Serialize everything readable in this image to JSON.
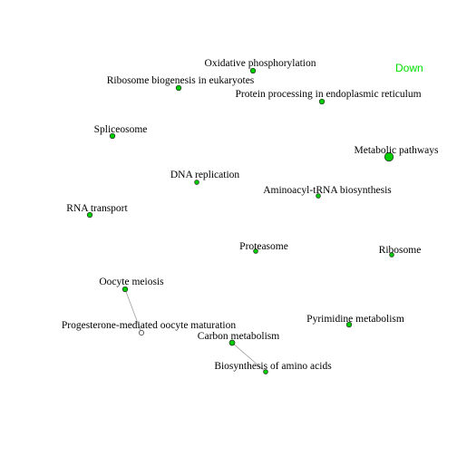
{
  "legend": {
    "label": "Down",
    "color": "#00e000"
  },
  "colors": {
    "node_fill": "#00cc00",
    "node_fill_white": "#ffffff"
  },
  "nodes": [
    {
      "id": "oxphos",
      "label": "Oxidative phosphorylation",
      "fill": "green"
    },
    {
      "id": "ribo_bio",
      "label": "Ribosome biogenesis in eukaryotes",
      "fill": "green"
    },
    {
      "id": "protein_er",
      "label": "Protein processing in endoplasmic reticulum",
      "fill": "green"
    },
    {
      "id": "spliceosome",
      "label": "Spliceosome",
      "fill": "green"
    },
    {
      "id": "metabolic",
      "label": "Metabolic pathways",
      "fill": "green"
    },
    {
      "id": "dna_rep",
      "label": "DNA replication",
      "fill": "green"
    },
    {
      "id": "aminoacyl",
      "label": "Aminoacyl-tRNA biosynthesis",
      "fill": "green"
    },
    {
      "id": "rna_transport",
      "label": "RNA transport",
      "fill": "green"
    },
    {
      "id": "proteasome",
      "label": "Proteasome",
      "fill": "green"
    },
    {
      "id": "ribosome",
      "label": "Ribosome",
      "fill": "green"
    },
    {
      "id": "oocyte_meiosis",
      "label": "Oocyte meiosis",
      "fill": "green"
    },
    {
      "id": "progesterone",
      "label": "Progesterone-mediated oocyte maturation",
      "fill": "white"
    },
    {
      "id": "pyrimidine",
      "label": "Pyrimidine metabolism",
      "fill": "green"
    },
    {
      "id": "carbon",
      "label": "Carbon metabolism",
      "fill": "green"
    },
    {
      "id": "biosynth_aa",
      "label": "Biosynthesis of amino acids",
      "fill": "green"
    }
  ],
  "edges": [
    {
      "source": "oocyte_meiosis",
      "target": "progesterone"
    },
    {
      "source": "carbon",
      "target": "biosynth_aa"
    }
  ]
}
